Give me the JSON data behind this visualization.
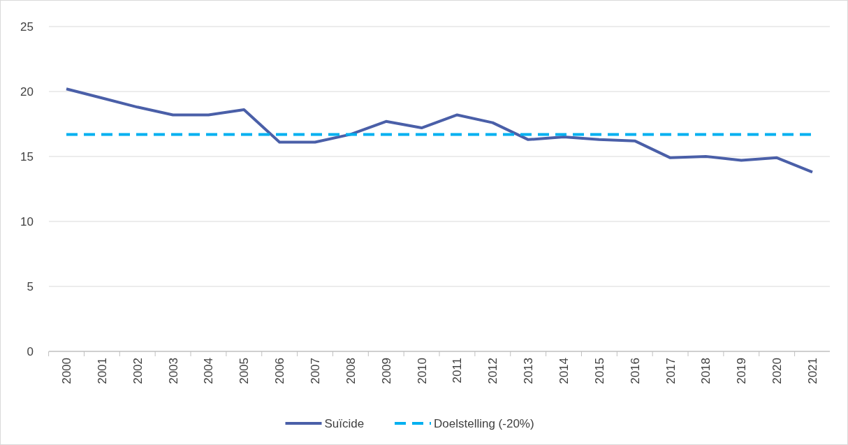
{
  "chart_data": {
    "type": "line",
    "categories": [
      "2000",
      "2001",
      "2002",
      "2003",
      "2004",
      "2005",
      "2006",
      "2007",
      "2008",
      "2009",
      "2010",
      "2011",
      "2012",
      "2013",
      "2014",
      "2015",
      "2016",
      "2017",
      "2018",
      "2019",
      "2020",
      "2021"
    ],
    "series": [
      {
        "name": "Suïcide",
        "color": "#4a5fa8",
        "line_style": "solid",
        "values": [
          20.2,
          19.5,
          18.8,
          18.2,
          18.2,
          18.6,
          16.1,
          16.1,
          16.7,
          17.7,
          17.2,
          18.2,
          17.6,
          16.3,
          16.5,
          16.3,
          16.2,
          14.9,
          15.0,
          14.7,
          14.9,
          13.8
        ]
      },
      {
        "name": "Doelstelling (-20%)",
        "color": "#00b0f0",
        "line_style": "dashed",
        "values": [
          16.7,
          16.7,
          16.7,
          16.7,
          16.7,
          16.7,
          16.7,
          16.7,
          16.7,
          16.7,
          16.7,
          16.7,
          16.7,
          16.7,
          16.7,
          16.7,
          16.7,
          16.7,
          16.7,
          16.7,
          16.7,
          16.7
        ]
      }
    ],
    "ylim": [
      0,
      25
    ],
    "yticks": [
      0,
      5,
      10,
      15,
      20,
      25
    ],
    "grid": "y",
    "legend": "bottom",
    "marker": "none"
  }
}
